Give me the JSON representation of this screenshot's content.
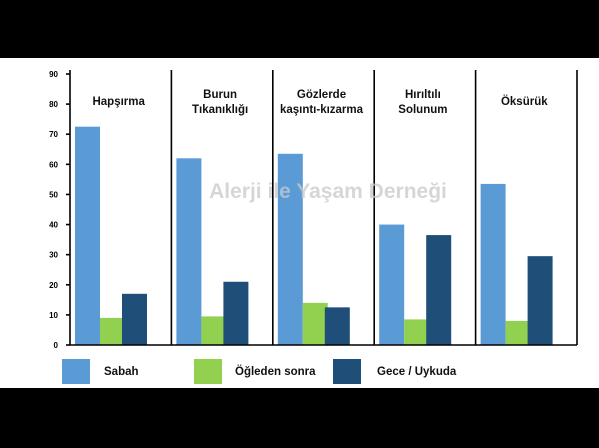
{
  "chart_data": {
    "type": "bar",
    "categories": [
      [
        "Hapşırma"
      ],
      [
        "Burun",
        "Tıkanıklığı"
      ],
      [
        "Gözlerde",
        "kaşıntı-kızarma"
      ],
      [
        "Hırıltılı",
        "Solunum"
      ],
      [
        "Öksürük"
      ]
    ],
    "series": [
      {
        "name": "Sabah",
        "color": "#5b9bd5",
        "values": [
          72.5,
          62,
          63.5,
          40,
          53.5
        ]
      },
      {
        "name": "Öğleden sonra",
        "color": "#92d050",
        "values": [
          9,
          9.5,
          14,
          8.5,
          8
        ]
      },
      {
        "name": "Gece / Uykuda",
        "color": "#1f4e79",
        "values": [
          17,
          21,
          12.5,
          36.5,
          29.5
        ]
      }
    ],
    "ylim": [
      0,
      90
    ],
    "yticks": [
      0,
      10,
      20,
      30,
      40,
      50,
      60,
      70,
      80,
      90
    ],
    "legend_position": "bottom",
    "grid": false,
    "watermark": "Alerji ile Yaşam Derneği"
  }
}
